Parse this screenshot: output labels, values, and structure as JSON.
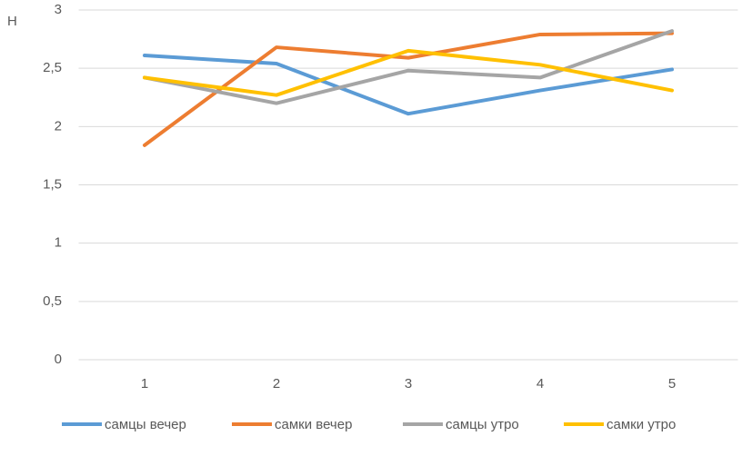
{
  "chart_data": {
    "type": "line",
    "y_label": "Н",
    "categories": [
      "1",
      "2",
      "3",
      "4",
      "5"
    ],
    "series": [
      {
        "name": "самцы вечер",
        "color": "#5b9bd5",
        "values": [
          2.61,
          2.54,
          2.11,
          2.31,
          2.49
        ]
      },
      {
        "name": "самки вечер",
        "color": "#ed7d31",
        "values": [
          1.84,
          2.68,
          2.59,
          2.79,
          2.8
        ]
      },
      {
        "name": "самцы утро",
        "color": "#a5a5a5",
        "values": [
          2.42,
          2.2,
          2.48,
          2.42,
          2.82
        ]
      },
      {
        "name": "самки утро",
        "color": "#ffc000",
        "values": [
          2.42,
          2.27,
          2.65,
          2.53,
          2.31
        ]
      }
    ],
    "ylim": [
      0,
      3
    ],
    "yticks": [
      0,
      {
        "value": 0.5,
        "label": "0,5"
      },
      1,
      {
        "value": 1.5,
        "label": "1,5"
      },
      2,
      {
        "value": 2.5,
        "label": "2,5"
      },
      3
    ],
    "grid": true,
    "legend": "bottom"
  }
}
